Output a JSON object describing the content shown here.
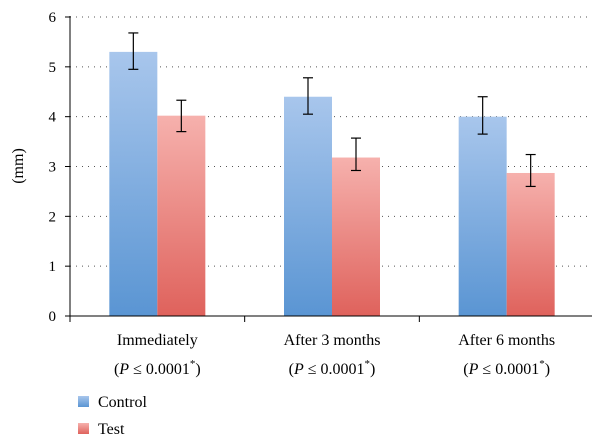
{
  "chart_data": {
    "type": "bar",
    "ylabel": "(mm)",
    "ylim": [
      0,
      6
    ],
    "yticks": [
      0,
      1,
      2,
      3,
      4,
      5,
      6
    ],
    "grid": "horizontal dotted",
    "legend_position": "bottom-left",
    "categories": [
      {
        "name": "Immediately",
        "p_prefix": "(",
        "p_var": "P",
        "p_rel": " ≤ 0.0001",
        "p_sup": "*",
        "p_suffix": ")"
      },
      {
        "name": "After 3 months",
        "p_prefix": "(",
        "p_var": "P",
        "p_rel": " ≤ 0.0001",
        "p_sup": "*",
        "p_suffix": ")"
      },
      {
        "name": "After 6 months",
        "p_prefix": "(",
        "p_var": "P",
        "p_rel": " ≤ 0.0001",
        "p_sup": "*",
        "p_suffix": ")"
      }
    ],
    "series": [
      {
        "name": "Control",
        "values": [
          5.3,
          4.4,
          4.0
        ],
        "err_low": [
          4.95,
          4.05,
          3.65
        ],
        "err_high": [
          5.68,
          4.78,
          4.4
        ],
        "color_top": "#a8c6ec",
        "color_bottom": "#5a95d3"
      },
      {
        "name": "Test",
        "values": [
          4.02,
          3.18,
          2.87
        ],
        "err_low": [
          3.7,
          2.92,
          2.6
        ],
        "err_high": [
          4.33,
          3.57,
          3.24
        ],
        "color_top": "#f6b1ad",
        "color_bottom": "#df625c"
      }
    ]
  }
}
